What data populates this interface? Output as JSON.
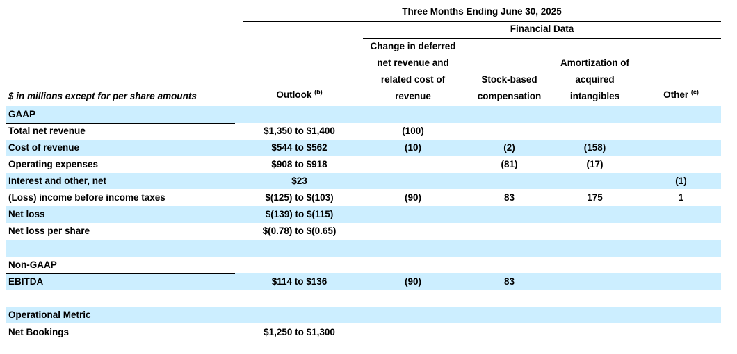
{
  "header": {
    "period": "Three Months Ending June 30, 2025",
    "financial_data": "Financial Data",
    "units": "$ in millions except for per share amounts",
    "outlook": "Outlook",
    "outlook_note": "(b)",
    "col_deferred_1": "Change in deferred",
    "col_deferred_2": "net revenue and",
    "col_deferred_3": "related cost of",
    "col_deferred_4": "revenue",
    "col_stock_1": "Stock-based",
    "col_stock_2": "compensation",
    "col_amort_1": "Amortization of",
    "col_amort_2": "acquired",
    "col_amort_3": "intangibles",
    "col_other": "Other",
    "other_note": "(c)"
  },
  "sections": {
    "gaap": "GAAP",
    "non_gaap": "Non-GAAP",
    "operational": "Operational Metric"
  },
  "rows": [
    {
      "label": "Total net revenue",
      "outlook": "$1,350 to $1,400",
      "deferred": "(100)",
      "stock": "",
      "amort": "",
      "other": ""
    },
    {
      "label": "Cost of revenue",
      "outlook": "$544 to $562",
      "deferred": "(10)",
      "stock": "(2)",
      "amort": "(158)",
      "other": ""
    },
    {
      "label": "Operating expenses",
      "outlook": "$908 to $918",
      "deferred": "",
      "stock": "(81)",
      "amort": "(17)",
      "other": ""
    },
    {
      "label": "Interest and other, net",
      "outlook": "$23",
      "deferred": "",
      "stock": "",
      "amort": "",
      "other": "(1)"
    },
    {
      "label": "(Loss) income before income taxes",
      "outlook": "$(125) to $(103)",
      "deferred": "(90)",
      "stock": "83",
      "amort": "175",
      "other": "1"
    },
    {
      "label": "Net loss",
      "outlook": "$(139) to $(115)",
      "deferred": "",
      "stock": "",
      "amort": "",
      "other": ""
    },
    {
      "label": "Net loss per share",
      "outlook": "$(0.78) to $(0.65)",
      "deferred": "",
      "stock": "",
      "amort": "",
      "other": ""
    }
  ],
  "ebitda": {
    "label": "EBITDA",
    "outlook": "$114 to $136",
    "deferred": "(90)",
    "stock": "83",
    "amort": "",
    "other": ""
  },
  "bookings": {
    "label": "Net Bookings",
    "outlook": "$1,250 to $1,300"
  }
}
